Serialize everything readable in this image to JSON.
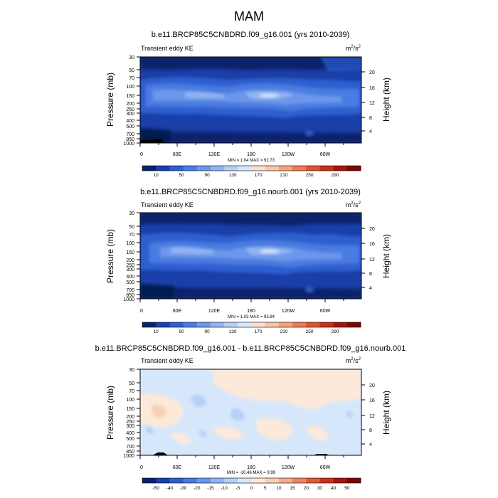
{
  "figure_title": "MAM",
  "chart_data": [
    {
      "type": "heatmap",
      "title": "b.e11.BRCP85C5CNBDRD.f09_g16.001 (yrs 2010-2039)",
      "subtitle_left": "Transient eddy KE",
      "units": "m²/s²",
      "units_base": "m",
      "units_sup1": "2",
      "units_mid": "/s",
      "units_sup2": "2",
      "ylabel": "Pressure (mb)",
      "ylabel_right": "Height (km)",
      "pressure_ticks": [
        "30",
        "50",
        "70",
        "100",
        "150",
        "200",
        "250",
        "300",
        "400",
        "500",
        "700",
        "850",
        "1000"
      ],
      "height_ticks": [
        "20",
        "16",
        "12",
        "8",
        "4"
      ],
      "x_ticks": [
        "0",
        "60E",
        "120E",
        "180",
        "120W",
        "60W"
      ],
      "min_max_label": "MIN =   1.04  MAX =  92.73",
      "colorbar_labels": [
        "10",
        "50",
        "90",
        "130",
        "170",
        "210",
        "250",
        "290"
      ],
      "colorbar_colors": [
        "#08236b",
        "#1a3fa8",
        "#2e5ed0",
        "#4a7be0",
        "#6d97ea",
        "#92b4f2",
        "#b6d0f8",
        "#d7e7fb",
        "#f8e0cf",
        "#f6c6a8",
        "#f2a37e",
        "#ea7b56",
        "#dd5430",
        "#c6301a",
        "#a3150e",
        "#7a0606"
      ]
    },
    {
      "type": "heatmap",
      "title": "b.e11.BRCP85C5CNBDRD.f09_g16.nourb.001 (yrs 2010-2039)",
      "subtitle_left": "Transient eddy KE",
      "units": "m²/s²",
      "units_base": "m",
      "units_sup1": "2",
      "units_mid": "/s",
      "units_sup2": "2",
      "ylabel": "Pressure (mb)",
      "ylabel_right": "Height (km)",
      "pressure_ticks": [
        "30",
        "50",
        "70",
        "100",
        "150",
        "200",
        "250",
        "300",
        "400",
        "500",
        "700",
        "850",
        "1000"
      ],
      "height_ticks": [
        "20",
        "16",
        "12",
        "8",
        "4"
      ],
      "x_ticks": [
        "0",
        "60E",
        "120E",
        "180",
        "120W",
        "60W"
      ],
      "min_max_label": "MIN =   1.03  MAX =  93.84",
      "colorbar_labels": [
        "10",
        "50",
        "90",
        "130",
        "170",
        "210",
        "250",
        "290"
      ],
      "colorbar_colors": [
        "#08236b",
        "#1a3fa8",
        "#2e5ed0",
        "#4a7be0",
        "#6d97ea",
        "#92b4f2",
        "#b6d0f8",
        "#d7e7fb",
        "#f8e0cf",
        "#f6c6a8",
        "#f2a37e",
        "#ea7b56",
        "#dd5430",
        "#c6301a",
        "#a3150e",
        "#7a0606"
      ]
    },
    {
      "type": "heatmap",
      "title": "b.e11.BRCP85C5CNBDRD.f09_g16.001 - b.e11.BRCP85C5CNBDRD.f09_g16.nourb.001",
      "subtitle_left": "Transient eddy KE",
      "units": "m²/s²",
      "units_base": "m",
      "units_sup1": "2",
      "units_mid": "/s",
      "units_sup2": "2",
      "ylabel": "Pressure (mb)",
      "ylabel_right": "Height (km)",
      "pressure_ticks": [
        "30",
        "50",
        "70",
        "100",
        "150",
        "200",
        "250",
        "300",
        "400",
        "500",
        "700",
        "850",
        "1000"
      ],
      "height_ticks": [
        "20",
        "16",
        "12",
        "8",
        "4"
      ],
      "x_ticks": [
        "0",
        "60E",
        "120E",
        "180",
        "120W",
        "60W"
      ],
      "min_max_label": "MIN = -10.46  MAX =   9.99",
      "colorbar_labels": [
        "-50",
        "-40",
        "-30",
        "-20",
        "-15",
        "-10",
        "-5",
        "0",
        "5",
        "10",
        "15",
        "20",
        "30",
        "40",
        "50"
      ],
      "colorbar_colors": [
        "#08236b",
        "#1a3fa8",
        "#2e5ed0",
        "#4a7be0",
        "#6d97ea",
        "#92b4f2",
        "#b6d0f8",
        "#d7e7fb",
        "#fde9d9",
        "#f8d0b6",
        "#f4ae8c",
        "#ec8762",
        "#df5b36",
        "#c8321b",
        "#a3150e",
        "#7a0606"
      ]
    }
  ]
}
